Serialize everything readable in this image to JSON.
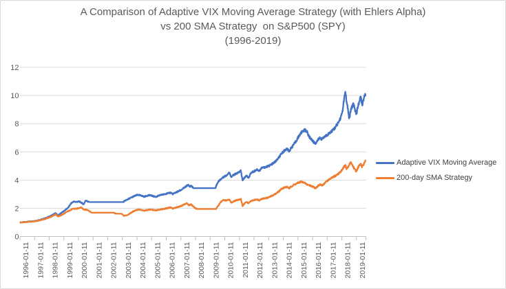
{
  "chart": {
    "title_lines": [
      "A Comparison of Adaptive VIX Moving Average Strategy (with Ehlers Alpha)",
      "vs 200 SMA Strategy  on S&P500 (SPY)",
      "(1996-2019)"
    ]
  },
  "chart_data": {
    "type": "line",
    "title": "A Comparison of Adaptive VIX Moving Average Strategy (with Ehlers Alpha) vs 200 SMA Strategy on S&P500 (SPY) (1996-2019)",
    "xlabel": "",
    "ylabel": "",
    "ylim": [
      0,
      12
    ],
    "y_ticks": [
      0,
      2,
      4,
      6,
      8,
      10,
      12
    ],
    "x_range_years": [
      1996.0,
      2019.65
    ],
    "x_tick_labels": [
      "1996-01-11",
      "1997-01-11",
      "1998-01-11",
      "1999-01-11",
      "2000-01-11",
      "2001-01-11",
      "2002-01-11",
      "2003-01-11",
      "2004-01-11",
      "2005-01-11",
      "2006-01-11",
      "2007-01-11",
      "2008-01-11",
      "2009-01-11",
      "2010-01-11",
      "2011-01-11",
      "2012-01-11",
      "2013-01-11",
      "2014-01-11",
      "2015-01-11",
      "2016-01-11",
      "2017-01-11",
      "2018-01-11",
      "2019-01-11"
    ],
    "x_label_rotation_deg": -90,
    "grid": "horizontal",
    "legend_position": "right",
    "points_note": "points are [decimal_year, growth_of_$1] estimated from the plot",
    "colors": {
      "background": "#FFFFFF",
      "border": "#D9D9D9",
      "gridline": "#D9D9D9",
      "axis_line": "#BFBFBF",
      "title_text": "#595959",
      "axis_text": "#595959",
      "legend_text": "#404040"
    },
    "series": [
      {
        "name": "Adaptive VIX Moving Average",
        "color": "#4472C4",
        "flat_ranges": [
          [
            2000.75,
            2003.05
          ],
          [
            2007.85,
            2009.35
          ]
        ],
        "points": [
          [
            1996.03,
            1.0
          ],
          [
            1996.3,
            1.02
          ],
          [
            1996.6,
            1.06
          ],
          [
            1996.9,
            1.08
          ],
          [
            1997.2,
            1.14
          ],
          [
            1997.5,
            1.22
          ],
          [
            1997.8,
            1.32
          ],
          [
            1998.1,
            1.45
          ],
          [
            1998.3,
            1.58
          ],
          [
            1998.45,
            1.65
          ],
          [
            1998.6,
            1.48
          ],
          [
            1998.75,
            1.62
          ],
          [
            1998.9,
            1.72
          ],
          [
            1999.1,
            1.88
          ],
          [
            1999.3,
            2.05
          ],
          [
            1999.5,
            2.35
          ],
          [
            1999.65,
            2.47
          ],
          [
            1999.85,
            2.45
          ],
          [
            2000.05,
            2.48
          ],
          [
            2000.2,
            2.4
          ],
          [
            2000.35,
            2.28
          ],
          [
            2000.5,
            2.57
          ],
          [
            2000.65,
            2.46
          ],
          [
            2000.75,
            2.44
          ],
          [
            2003.05,
            2.44
          ],
          [
            2003.2,
            2.55
          ],
          [
            2003.5,
            2.7
          ],
          [
            2003.8,
            2.86
          ],
          [
            2004.05,
            2.95
          ],
          [
            2004.3,
            2.9
          ],
          [
            2004.5,
            2.82
          ],
          [
            2004.7,
            2.9
          ],
          [
            2004.9,
            2.93
          ],
          [
            2005.1,
            2.86
          ],
          [
            2005.3,
            2.81
          ],
          [
            2005.5,
            2.9
          ],
          [
            2005.7,
            2.96
          ],
          [
            2005.9,
            3.01
          ],
          [
            2006.1,
            3.06
          ],
          [
            2006.3,
            3.11
          ],
          [
            2006.45,
            3.01
          ],
          [
            2006.6,
            3.09
          ],
          [
            2006.8,
            3.19
          ],
          [
            2007.0,
            3.29
          ],
          [
            2007.2,
            3.43
          ],
          [
            2007.4,
            3.59
          ],
          [
            2007.5,
            3.66
          ],
          [
            2007.6,
            3.53
          ],
          [
            2007.7,
            3.61
          ],
          [
            2007.85,
            3.43
          ],
          [
            2009.35,
            3.43
          ],
          [
            2009.5,
            3.8
          ],
          [
            2009.65,
            4.0
          ],
          [
            2009.8,
            4.12
          ],
          [
            2009.95,
            4.25
          ],
          [
            2010.1,
            4.32
          ],
          [
            2010.3,
            4.55
          ],
          [
            2010.45,
            4.23
          ],
          [
            2010.6,
            4.36
          ],
          [
            2010.8,
            4.46
          ],
          [
            2011.0,
            4.58
          ],
          [
            2011.1,
            4.66
          ],
          [
            2011.22,
            3.95
          ],
          [
            2011.35,
            4.18
          ],
          [
            2011.5,
            4.32
          ],
          [
            2011.62,
            4.15
          ],
          [
            2011.8,
            4.52
          ],
          [
            2012.0,
            4.62
          ],
          [
            2012.2,
            4.76
          ],
          [
            2012.35,
            4.64
          ],
          [
            2012.5,
            4.85
          ],
          [
            2012.7,
            4.9
          ],
          [
            2012.9,
            4.96
          ],
          [
            2013.1,
            5.05
          ],
          [
            2013.3,
            5.18
          ],
          [
            2013.5,
            5.35
          ],
          [
            2013.7,
            5.6
          ],
          [
            2013.9,
            5.9
          ],
          [
            2014.1,
            6.12
          ],
          [
            2014.25,
            6.22
          ],
          [
            2014.4,
            6.05
          ],
          [
            2014.55,
            6.3
          ],
          [
            2014.7,
            6.5
          ],
          [
            2014.85,
            6.72
          ],
          [
            2015.0,
            7.0
          ],
          [
            2015.15,
            7.25
          ],
          [
            2015.3,
            7.45
          ],
          [
            2015.45,
            7.55
          ],
          [
            2015.6,
            7.48
          ],
          [
            2015.75,
            7.1
          ],
          [
            2015.9,
            6.92
          ],
          [
            2016.05,
            6.72
          ],
          [
            2016.2,
            6.6
          ],
          [
            2016.35,
            6.82
          ],
          [
            2016.5,
            7.0
          ],
          [
            2016.65,
            6.9
          ],
          [
            2016.8,
            7.05
          ],
          [
            2017.0,
            7.2
          ],
          [
            2017.2,
            7.38
          ],
          [
            2017.4,
            7.55
          ],
          [
            2017.6,
            7.8
          ],
          [
            2017.8,
            8.15
          ],
          [
            2017.95,
            8.5
          ],
          [
            2018.05,
            8.9
          ],
          [
            2018.15,
            9.7
          ],
          [
            2018.25,
            10.3
          ],
          [
            2018.33,
            9.45
          ],
          [
            2018.42,
            9.05
          ],
          [
            2018.5,
            8.3
          ],
          [
            2018.6,
            8.9
          ],
          [
            2018.7,
            9.2
          ],
          [
            2018.8,
            9.45
          ],
          [
            2018.9,
            9.0
          ],
          [
            2019.0,
            8.7
          ],
          [
            2019.1,
            9.2
          ],
          [
            2019.2,
            9.6
          ],
          [
            2019.3,
            9.9
          ],
          [
            2019.38,
            9.3
          ],
          [
            2019.46,
            9.6
          ],
          [
            2019.54,
            9.9
          ],
          [
            2019.62,
            10.05
          ]
        ]
      },
      {
        "name": "200-day SMA Strategy",
        "color": "#ED7D31",
        "flat_ranges": [
          [
            2000.9,
            2002.4
          ],
          [
            2002.55,
            2002.95
          ],
          [
            2008.1,
            2009.4
          ]
        ],
        "points": [
          [
            1996.03,
            1.0
          ],
          [
            1996.3,
            1.01
          ],
          [
            1996.6,
            1.04
          ],
          [
            1996.9,
            1.06
          ],
          [
            1997.2,
            1.11
          ],
          [
            1997.5,
            1.18
          ],
          [
            1997.8,
            1.27
          ],
          [
            1998.1,
            1.38
          ],
          [
            1998.3,
            1.5
          ],
          [
            1998.45,
            1.57
          ],
          [
            1998.6,
            1.42
          ],
          [
            1998.75,
            1.48
          ],
          [
            1998.9,
            1.55
          ],
          [
            1999.1,
            1.68
          ],
          [
            1999.3,
            1.8
          ],
          [
            1999.5,
            1.9
          ],
          [
            1999.65,
            1.97
          ],
          [
            1999.85,
            1.96
          ],
          [
            2000.05,
            2.03
          ],
          [
            2000.2,
            2.06
          ],
          [
            2000.35,
            1.92
          ],
          [
            2000.5,
            1.9
          ],
          [
            2000.65,
            1.86
          ],
          [
            2000.8,
            1.76
          ],
          [
            2000.9,
            1.69
          ],
          [
            2002.4,
            1.69
          ],
          [
            2002.55,
            1.62
          ],
          [
            2002.95,
            1.61
          ],
          [
            2003.1,
            1.47
          ],
          [
            2003.3,
            1.5
          ],
          [
            2003.5,
            1.62
          ],
          [
            2003.7,
            1.75
          ],
          [
            2003.9,
            1.86
          ],
          [
            2004.1,
            1.91
          ],
          [
            2004.3,
            1.87
          ],
          [
            2004.5,
            1.83
          ],
          [
            2004.7,
            1.88
          ],
          [
            2004.9,
            1.91
          ],
          [
            2005.1,
            1.88
          ],
          [
            2005.3,
            1.85
          ],
          [
            2005.5,
            1.9
          ],
          [
            2005.7,
            1.93
          ],
          [
            2005.9,
            1.97
          ],
          [
            2006.1,
            2.02
          ],
          [
            2006.3,
            2.06
          ],
          [
            2006.45,
            1.98
          ],
          [
            2006.6,
            2.03
          ],
          [
            2006.8,
            2.09
          ],
          [
            2007.0,
            2.16
          ],
          [
            2007.2,
            2.25
          ],
          [
            2007.4,
            2.35
          ],
          [
            2007.55,
            2.21
          ],
          [
            2007.7,
            2.28
          ],
          [
            2007.85,
            2.12
          ],
          [
            2008.0,
            2.0
          ],
          [
            2008.1,
            1.95
          ],
          [
            2009.4,
            1.95
          ],
          [
            2009.55,
            2.18
          ],
          [
            2009.7,
            2.42
          ],
          [
            2009.9,
            2.58
          ],
          [
            2010.1,
            2.55
          ],
          [
            2010.3,
            2.62
          ],
          [
            2010.45,
            2.4
          ],
          [
            2010.6,
            2.5
          ],
          [
            2010.8,
            2.58
          ],
          [
            2011.0,
            2.63
          ],
          [
            2011.1,
            2.66
          ],
          [
            2011.22,
            2.16
          ],
          [
            2011.35,
            2.35
          ],
          [
            2011.5,
            2.45
          ],
          [
            2011.62,
            2.35
          ],
          [
            2011.8,
            2.52
          ],
          [
            2012.0,
            2.58
          ],
          [
            2012.2,
            2.64
          ],
          [
            2012.35,
            2.56
          ],
          [
            2012.5,
            2.66
          ],
          [
            2012.7,
            2.7
          ],
          [
            2012.9,
            2.74
          ],
          [
            2013.1,
            2.82
          ],
          [
            2013.3,
            2.92
          ],
          [
            2013.5,
            3.05
          ],
          [
            2013.7,
            3.2
          ],
          [
            2013.9,
            3.4
          ],
          [
            2014.1,
            3.48
          ],
          [
            2014.25,
            3.52
          ],
          [
            2014.4,
            3.42
          ],
          [
            2014.55,
            3.55
          ],
          [
            2014.7,
            3.65
          ],
          [
            2014.85,
            3.72
          ],
          [
            2015.0,
            3.8
          ],
          [
            2015.2,
            3.88
          ],
          [
            2015.4,
            3.84
          ],
          [
            2015.6,
            3.7
          ],
          [
            2015.8,
            3.62
          ],
          [
            2016.0,
            3.55
          ],
          [
            2016.2,
            3.43
          ],
          [
            2016.35,
            3.56
          ],
          [
            2016.5,
            3.68
          ],
          [
            2016.65,
            3.62
          ],
          [
            2016.8,
            3.75
          ],
          [
            2017.0,
            3.95
          ],
          [
            2017.2,
            4.08
          ],
          [
            2017.4,
            4.2
          ],
          [
            2017.6,
            4.33
          ],
          [
            2017.8,
            4.48
          ],
          [
            2017.95,
            4.62
          ],
          [
            2018.05,
            4.8
          ],
          [
            2018.15,
            4.95
          ],
          [
            2018.25,
            5.05
          ],
          [
            2018.33,
            4.75
          ],
          [
            2018.42,
            4.9
          ],
          [
            2018.5,
            5.05
          ],
          [
            2018.6,
            5.28
          ],
          [
            2018.7,
            5.1
          ],
          [
            2018.8,
            4.92
          ],
          [
            2018.9,
            4.72
          ],
          [
            2019.0,
            4.62
          ],
          [
            2019.1,
            4.88
          ],
          [
            2019.2,
            5.02
          ],
          [
            2019.3,
            5.15
          ],
          [
            2019.38,
            4.9
          ],
          [
            2019.46,
            5.06
          ],
          [
            2019.54,
            5.22
          ],
          [
            2019.62,
            5.35
          ]
        ]
      }
    ]
  }
}
